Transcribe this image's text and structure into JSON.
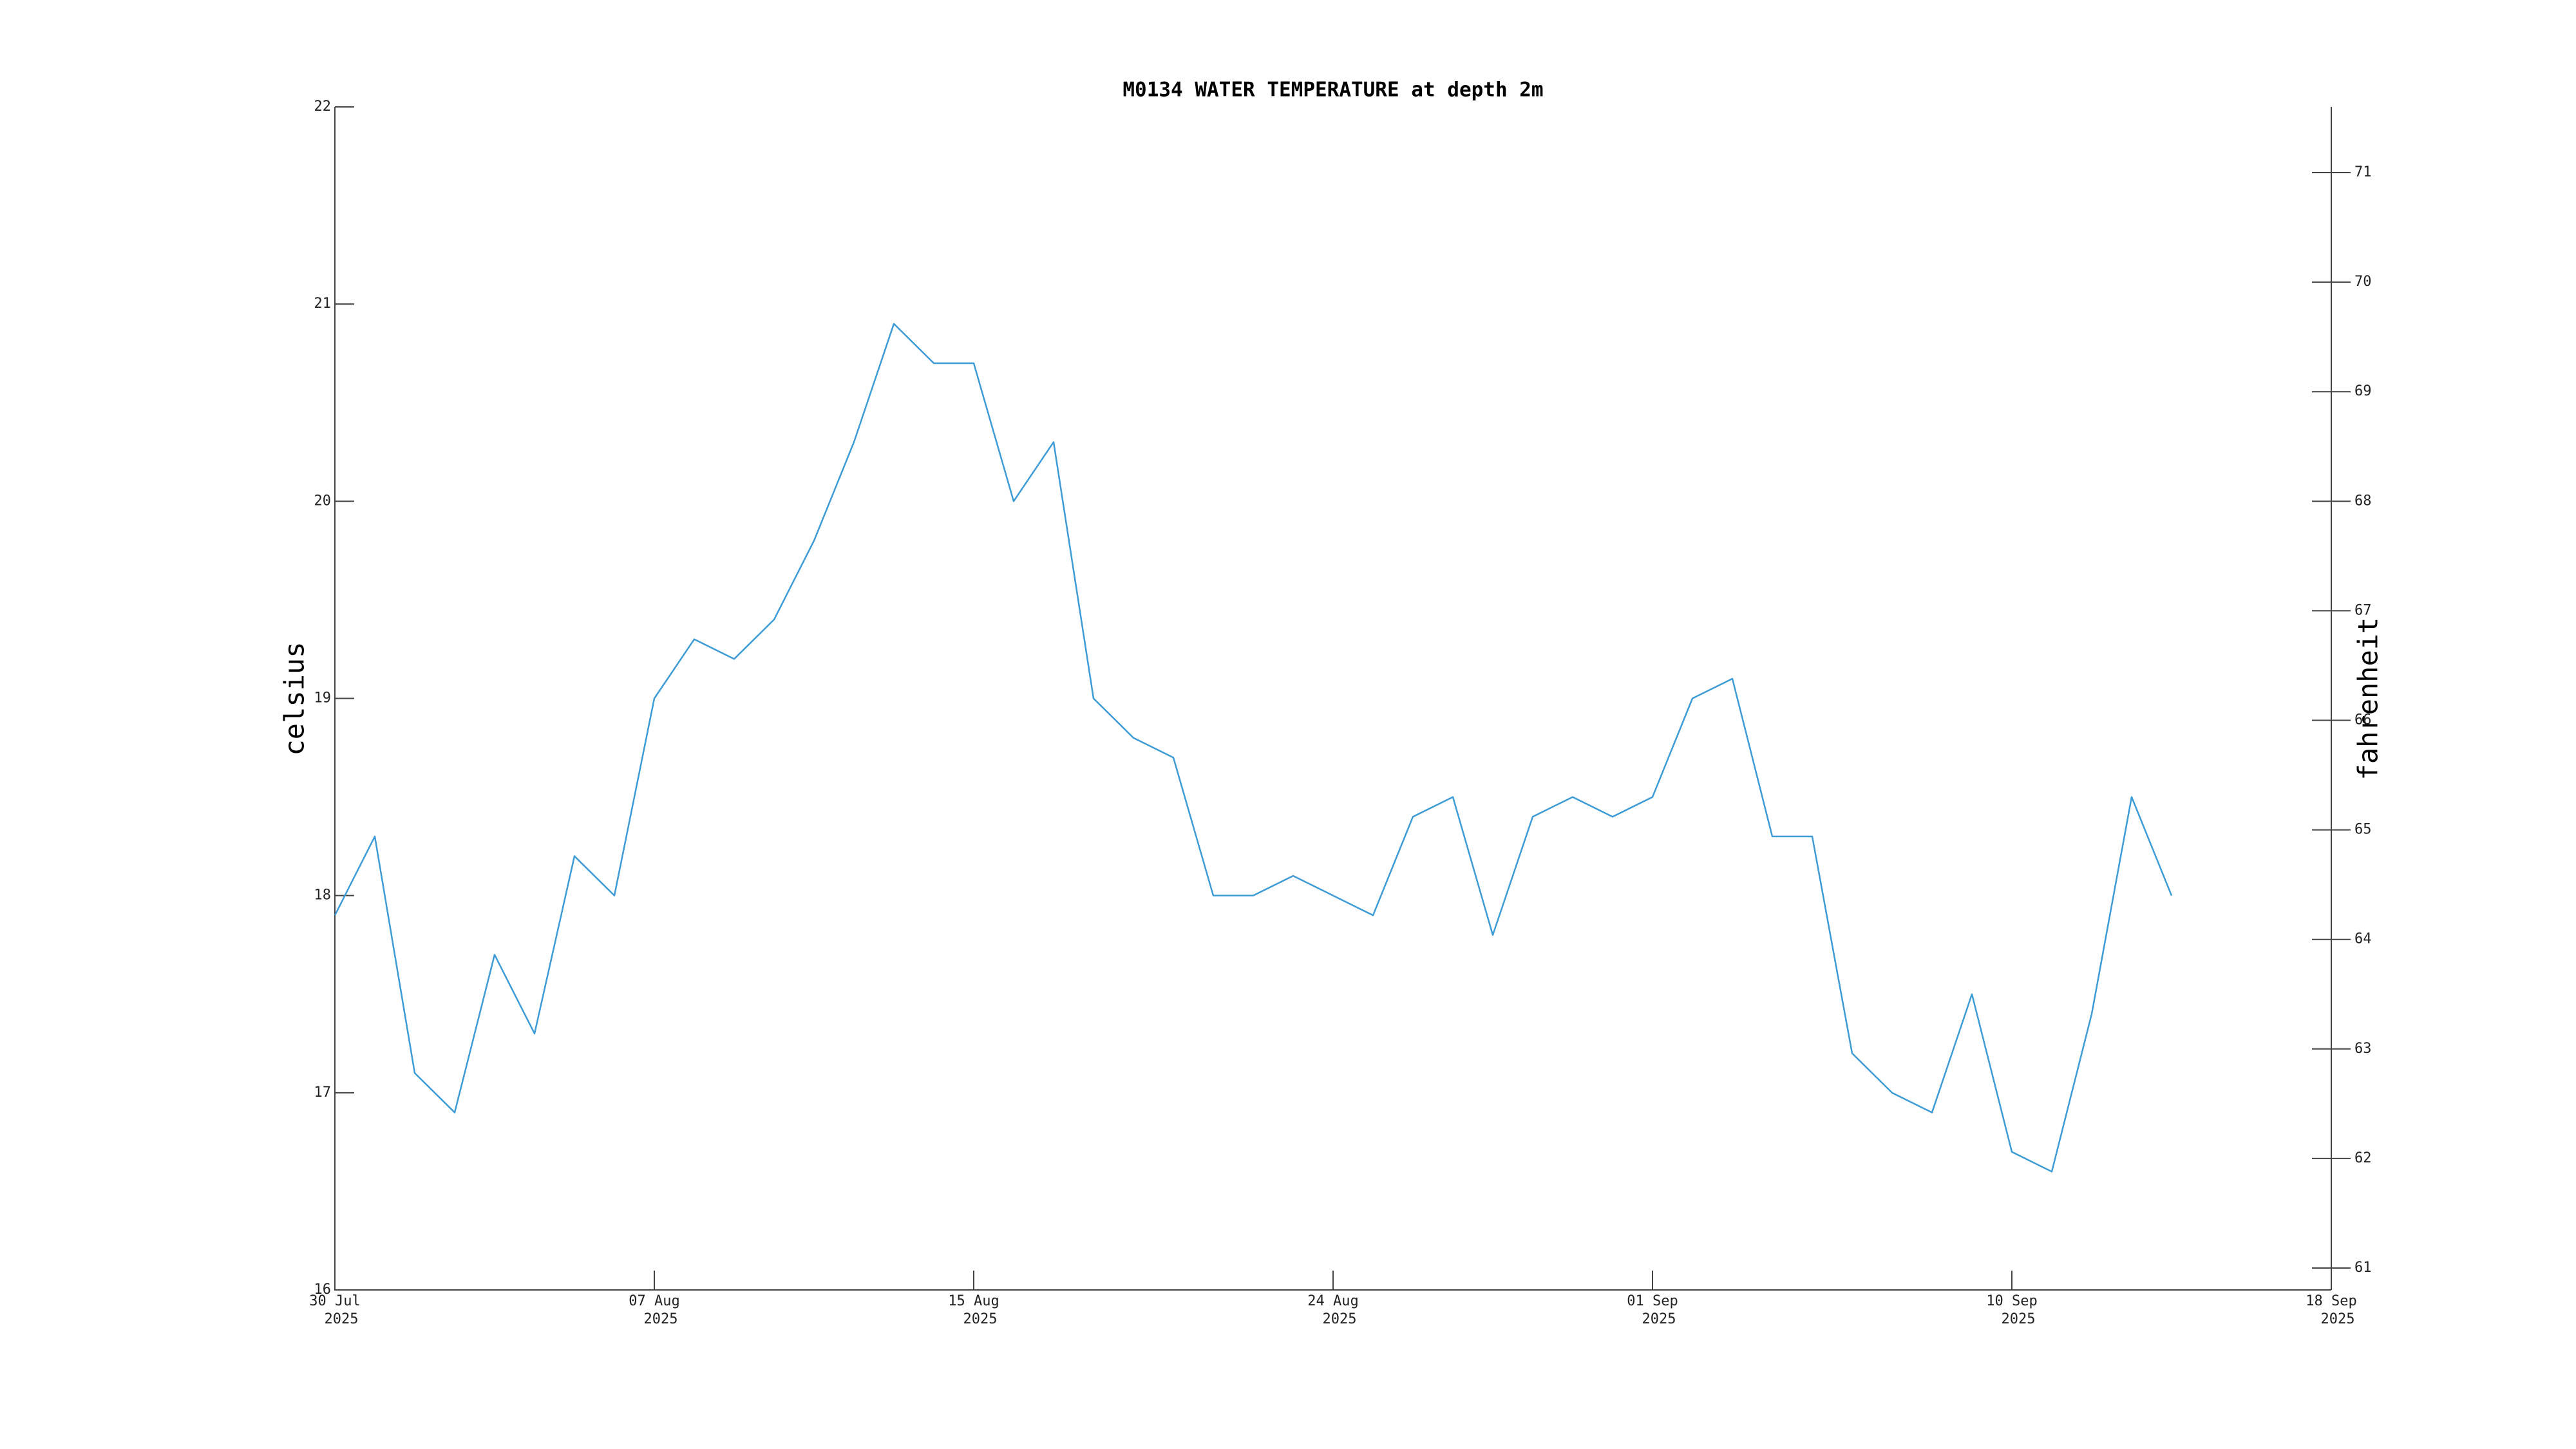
{
  "chart_data": {
    "type": "line",
    "title": "M0134 WATER TEMPERATURE at depth 2m",
    "ylabel": "celsius",
    "y2label": "fahrenheit",
    "x": [
      "2025-07-30",
      "2025-07-31",
      "2025-08-01",
      "2025-08-02",
      "2025-08-03",
      "2025-08-04",
      "2025-08-05",
      "2025-08-06",
      "2025-08-07",
      "2025-08-08",
      "2025-08-09",
      "2025-08-10",
      "2025-08-11",
      "2025-08-12",
      "2025-08-13",
      "2025-08-14",
      "2025-08-15",
      "2025-08-16",
      "2025-08-17",
      "2025-08-18",
      "2025-08-19",
      "2025-08-20",
      "2025-08-21",
      "2025-08-22",
      "2025-08-23",
      "2025-08-24",
      "2025-08-25",
      "2025-08-26",
      "2025-08-27",
      "2025-08-28",
      "2025-08-29",
      "2025-08-30",
      "2025-08-31",
      "2025-09-01",
      "2025-09-02",
      "2025-09-03",
      "2025-09-04",
      "2025-09-05",
      "2025-09-06",
      "2025-09-07",
      "2025-09-08",
      "2025-09-09",
      "2025-09-10",
      "2025-09-11",
      "2025-09-12",
      "2025-09-13",
      "2025-09-14"
    ],
    "series": [
      {
        "name": "celsius",
        "color": "#3d9bd6",
        "values": [
          17.9,
          18.3,
          17.1,
          16.9,
          17.7,
          17.3,
          18.2,
          18.0,
          19.0,
          19.3,
          19.2,
          19.4,
          19.8,
          20.3,
          20.9,
          20.7,
          20.7,
          20.0,
          20.3,
          19.0,
          18.8,
          18.7,
          18.0,
          18.0,
          18.1,
          18.0,
          17.9,
          18.4,
          18.5,
          17.8,
          18.4,
          18.5,
          18.4,
          18.5,
          19.0,
          19.1,
          18.3,
          18.3,
          17.2,
          17.0,
          16.9,
          17.5,
          16.7,
          16.6,
          17.4,
          18.5,
          18.0
        ]
      }
    ],
    "xlim": [
      "2025-07-30",
      "2025-09-18"
    ],
    "xticks": [
      {
        "value": "2025-07-30",
        "label": [
          "30 Jul",
          "2025"
        ]
      },
      {
        "value": "2025-08-07",
        "label": [
          "07 Aug",
          "2025"
        ]
      },
      {
        "value": "2025-08-15",
        "label": [
          "15 Aug",
          "2025"
        ]
      },
      {
        "value": "2025-08-24",
        "label": [
          "24 Aug",
          "2025"
        ]
      },
      {
        "value": "2025-09-01",
        "label": [
          "01 Sep",
          "2025"
        ]
      },
      {
        "value": "2025-09-10",
        "label": [
          "10 Sep",
          "2025"
        ]
      },
      {
        "value": "2025-09-18",
        "label": [
          "18 Sep",
          "2025"
        ]
      }
    ],
    "ylim": [
      16,
      22
    ],
    "yticks": [
      16,
      17,
      18,
      19,
      20,
      21,
      22
    ],
    "y2lim": [
      60.8,
      71.6
    ],
    "y2ticks": [
      61,
      62,
      63,
      64,
      65,
      66,
      67,
      68,
      69,
      70,
      71
    ]
  }
}
